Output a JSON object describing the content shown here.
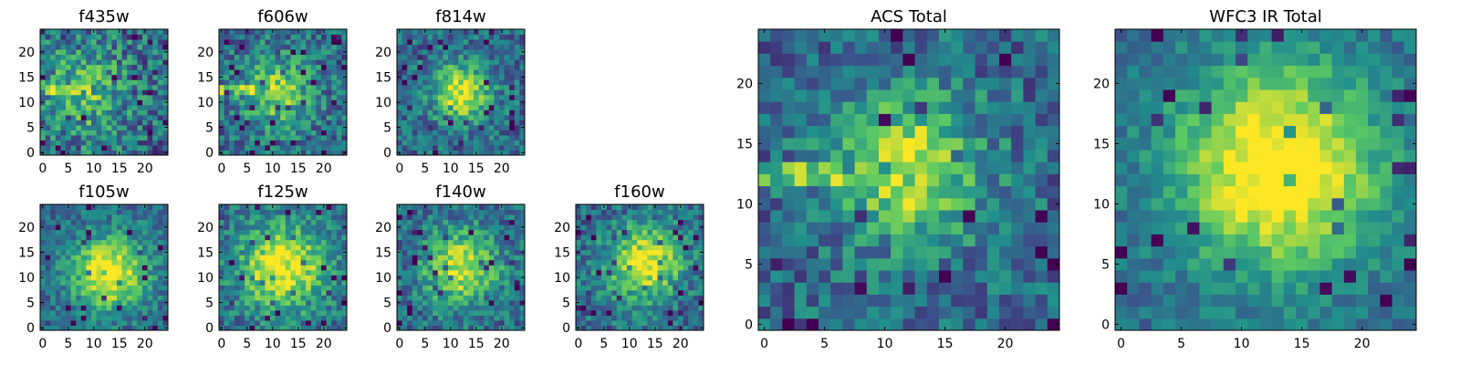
{
  "figure": {
    "colormap": "viridis",
    "colormap_stops": [
      "#440154",
      "#3b528b",
      "#21908c",
      "#5dc962",
      "#fde725"
    ]
  },
  "chart_data": [
    {
      "type": "heatmap",
      "title": "f435w",
      "grid_size": 25,
      "xticks": [
        0,
        5,
        10,
        15,
        20
      ],
      "yticks": [
        0,
        5,
        10,
        15,
        20
      ],
      "xlim": [
        0,
        25
      ],
      "ylim": [
        0,
        25
      ],
      "peak": [
        8,
        12
      ],
      "peak_width": 6,
      "peak_strength": 0.35,
      "noise": 0.55,
      "feature": "streak"
    },
    {
      "type": "heatmap",
      "title": "f606w",
      "grid_size": 25,
      "xticks": [
        0,
        5,
        10,
        15,
        20
      ],
      "yticks": [
        0,
        5,
        10,
        15,
        20
      ],
      "xlim": [
        0,
        25
      ],
      "ylim": [
        0,
        25
      ],
      "peak": [
        11,
        12
      ],
      "peak_width": 5,
      "peak_strength": 0.45,
      "noise": 0.45,
      "feature": "streak"
    },
    {
      "type": "heatmap",
      "title": "f814w",
      "grid_size": 25,
      "xticks": [
        0,
        5,
        10,
        15,
        20
      ],
      "yticks": [
        0,
        5,
        10,
        15,
        20
      ],
      "xlim": [
        0,
        25
      ],
      "ylim": [
        0,
        25
      ],
      "peak": [
        12,
        12
      ],
      "peak_width": 4,
      "peak_strength": 0.6,
      "noise": 0.4,
      "feature": "blob"
    },
    {
      "type": "heatmap",
      "title": "f105w",
      "grid_size": 25,
      "xticks": [
        0,
        5,
        10,
        15,
        20
      ],
      "yticks": [
        0,
        5,
        10,
        15,
        20
      ],
      "xlim": [
        0,
        25
      ],
      "ylim": [
        0,
        25
      ],
      "peak": [
        13,
        11
      ],
      "peak_width": 5,
      "peak_strength": 0.7,
      "noise": 0.35,
      "feature": "blob"
    },
    {
      "type": "heatmap",
      "title": "f125w",
      "grid_size": 25,
      "xticks": [
        0,
        5,
        10,
        15,
        20
      ],
      "yticks": [
        0,
        5,
        10,
        15,
        20
      ],
      "xlim": [
        0,
        25
      ],
      "ylim": [
        0,
        25
      ],
      "peak": [
        12,
        12
      ],
      "peak_width": 6,
      "peak_strength": 0.65,
      "noise": 0.4,
      "feature": "blob"
    },
    {
      "type": "heatmap",
      "title": "f140w",
      "grid_size": 25,
      "xticks": [
        0,
        5,
        10,
        15,
        20
      ],
      "yticks": [
        0,
        5,
        10,
        15,
        20
      ],
      "xlim": [
        0,
        25
      ],
      "ylim": [
        0,
        25
      ],
      "peak": [
        12,
        12
      ],
      "peak_width": 5,
      "peak_strength": 0.6,
      "noise": 0.4,
      "feature": "blob"
    },
    {
      "type": "heatmap",
      "title": "f160w",
      "grid_size": 25,
      "xticks": [
        0,
        5,
        10,
        15,
        20
      ],
      "yticks": [
        0,
        5,
        10,
        15,
        20
      ],
      "xlim": [
        0,
        25
      ],
      "ylim": [
        0,
        25
      ],
      "peak": [
        13,
        13
      ],
      "peak_width": 5,
      "peak_strength": 0.65,
      "noise": 0.4,
      "feature": "blob"
    },
    {
      "type": "heatmap",
      "title": "ACS Total",
      "grid_size": 25,
      "xticks": [
        0,
        5,
        10,
        15,
        20
      ],
      "yticks": [
        0,
        5,
        10,
        15,
        20
      ],
      "xlim": [
        0,
        25
      ],
      "ylim": [
        0,
        25
      ],
      "peak": [
        12,
        13
      ],
      "peak_width": 4,
      "peak_strength": 0.6,
      "noise": 0.4,
      "feature": "streak"
    },
    {
      "type": "heatmap",
      "title": "WFC3 IR Total",
      "grid_size": 25,
      "xticks": [
        0,
        5,
        10,
        15,
        20
      ],
      "yticks": [
        0,
        5,
        10,
        15,
        20
      ],
      "xlim": [
        0,
        25
      ],
      "ylim": [
        0,
        25
      ],
      "peak": [
        13,
        13
      ],
      "peak_width": 6,
      "peak_strength": 0.75,
      "noise": 0.25,
      "feature": "blob"
    }
  ]
}
